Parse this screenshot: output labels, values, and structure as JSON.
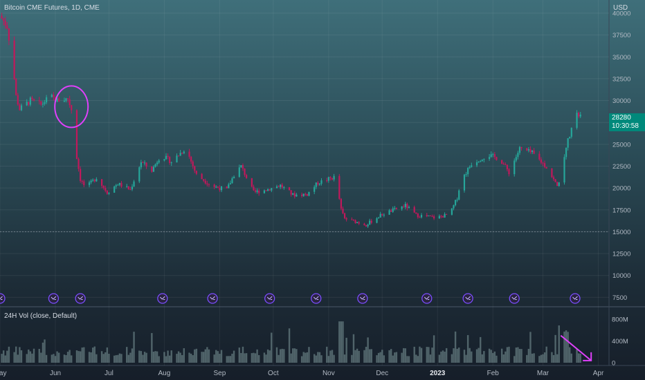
{
  "header": {
    "title": "Bitcoin CME Futures, 1D, CME",
    "currency": "USD",
    "volume_title": "24H Vol (close, Default)"
  },
  "last_price": {
    "value": "28280",
    "countdown": "10:30:58",
    "color": "#00897b"
  },
  "colors": {
    "up": "#26a69a",
    "down": "#c2185b",
    "annotation": "#e040fb",
    "dividend_icon": "#7c4dff",
    "volume": "#7f9a9c"
  },
  "chart_data": {
    "type": "candlestick",
    "title": "Bitcoin CME Futures, 1D, CME",
    "y_axis": {
      "ticks": [
        40000,
        37500,
        35000,
        32500,
        30000,
        27500,
        25000,
        22500,
        20000,
        17500,
        15000,
        12500,
        10000,
        7500
      ],
      "range": [
        6500,
        41500
      ],
      "unit": "USD"
    },
    "x_axis": {
      "ticks": [
        "May",
        "Jun",
        "Jul",
        "Aug",
        "Sep",
        "Oct",
        "Nov",
        "Dec",
        "2023",
        "Feb",
        "Mar",
        "Apr"
      ],
      "start_date": "2022-05-01",
      "end_date": "2023-04-07"
    },
    "price_path": [
      [
        "2022-05-01",
        39700
      ],
      [
        "2022-05-05",
        38500
      ],
      [
        "2022-05-08",
        34500
      ],
      [
        "2022-05-10",
        30500
      ],
      [
        "2022-05-12",
        29000
      ],
      [
        "2022-05-18",
        30000
      ],
      [
        "2022-05-24",
        29500
      ],
      [
        "2022-05-29",
        30500
      ],
      [
        "2022-06-02",
        30000
      ],
      [
        "2022-06-08",
        30200
      ],
      [
        "2022-06-10",
        29000
      ],
      [
        "2022-06-13",
        23500
      ],
      [
        "2022-06-15",
        21000
      ],
      [
        "2022-06-18",
        20000
      ],
      [
        "2022-06-24",
        21200
      ],
      [
        "2022-06-30",
        19500
      ],
      [
        "2022-07-06",
        20500
      ],
      [
        "2022-07-13",
        19800
      ],
      [
        "2022-07-19",
        23000
      ],
      [
        "2022-07-25",
        22000
      ],
      [
        "2022-07-30",
        23800
      ],
      [
        "2022-08-05",
        23000
      ],
      [
        "2022-08-13",
        24600
      ],
      [
        "2022-08-19",
        21500
      ],
      [
        "2022-08-28",
        20200
      ],
      [
        "2022-09-05",
        19800
      ],
      [
        "2022-09-09",
        21500
      ],
      [
        "2022-09-13",
        22500
      ],
      [
        "2022-09-20",
        19500
      ],
      [
        "2022-09-27",
        19800
      ],
      [
        "2022-10-05",
        20300
      ],
      [
        "2022-10-12",
        19200
      ],
      [
        "2022-10-20",
        19300
      ],
      [
        "2022-10-26",
        20600
      ],
      [
        "2022-11-05",
        21300
      ],
      [
        "2022-11-08",
        17500
      ],
      [
        "2022-11-10",
        16500
      ],
      [
        "2022-11-22",
        15800
      ],
      [
        "2022-12-01",
        17000
      ],
      [
        "2022-12-14",
        18000
      ],
      [
        "2022-12-20",
        16900
      ],
      [
        "2022-12-31",
        16600
      ],
      [
        "2023-01-08",
        17000
      ],
      [
        "2023-01-12",
        18900
      ],
      [
        "2023-01-14",
        20800
      ],
      [
        "2023-01-20",
        22800
      ],
      [
        "2023-01-29",
        23800
      ],
      [
        "2023-02-05",
        23300
      ],
      [
        "2023-02-10",
        21800
      ],
      [
        "2023-02-16",
        24500
      ],
      [
        "2023-02-23",
        24000
      ],
      [
        "2023-03-03",
        22400
      ],
      [
        "2023-03-09",
        20200
      ],
      [
        "2023-03-12",
        22000
      ],
      [
        "2023-03-14",
        24800
      ],
      [
        "2023-03-18",
        27500
      ],
      [
        "2023-03-20",
        28300
      ],
      [
        "2023-03-22",
        28280
      ]
    ],
    "volume_axis": {
      "ticks": [
        "800M",
        "400M",
        "0"
      ],
      "max_millions": 800
    },
    "dividend_markers": [
      "2022-05-01",
      "2022-05-31",
      "2022-06-15",
      "2022-07-31",
      "2022-08-28",
      "2022-09-29",
      "2022-10-25",
      "2022-11-20",
      "2022-12-26",
      "2023-01-18",
      "2023-02-13",
      "2023-03-19"
    ]
  },
  "annotations": [
    {
      "type": "circle",
      "date": "2022-06-10",
      "price": 29300
    },
    {
      "type": "arrow",
      "from_date": "2023-03-11",
      "to_date": "2023-03-28",
      "from_volume_m": 500,
      "to_volume_m": 40
    }
  ]
}
